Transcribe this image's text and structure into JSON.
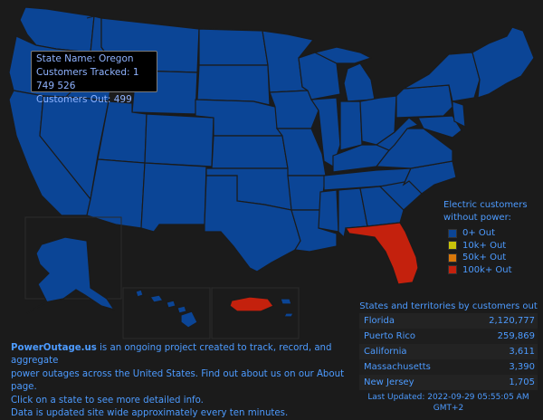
{
  "tooltip": {
    "state_name": "State Name: Oregon",
    "customers_tracked": "Customers Tracked: 1 749 526",
    "customers_out": "Customers Out: 499"
  },
  "legend": {
    "title_line1": "Electric customers",
    "title_line2": "without power:",
    "items": [
      {
        "label": "0+ Out",
        "color": "#0b4596"
      },
      {
        "label": "10k+ Out",
        "color": "#c9c30a"
      },
      {
        "label": "50k+ Out",
        "color": "#d9780a"
      },
      {
        "label": "100k+ Out",
        "color": "#c4210d"
      }
    ]
  },
  "ranking": {
    "title": "States and territories by customers out",
    "rows": [
      {
        "name": "Florida",
        "value": "2,120,777"
      },
      {
        "name": "Puerto Rico",
        "value": "259,869"
      },
      {
        "name": "California",
        "value": "3,611"
      },
      {
        "name": "Massachusetts",
        "value": "3,390"
      },
      {
        "name": "New Jersey",
        "value": "1,705"
      }
    ],
    "updated_line1": "Last Updated: 2022-09-29 05:55:05 AM",
    "updated_line2": "GMT+2"
  },
  "about": {
    "site_name": "PowerOutage.us",
    "line1_rest": " is an ongoing project created to track, record, and aggregate",
    "line2": "power outages across the United States. Find out about us on our About page.",
    "line3": "Click on a state to see more detailed info.",
    "line4": "Data is updated site wide approximately every ten minutes."
  },
  "colors": {
    "background": "#1b1b1b",
    "normal_state": "#0b4596",
    "outage_100k": "#c4210d",
    "text_accent": "#4d9bff"
  }
}
